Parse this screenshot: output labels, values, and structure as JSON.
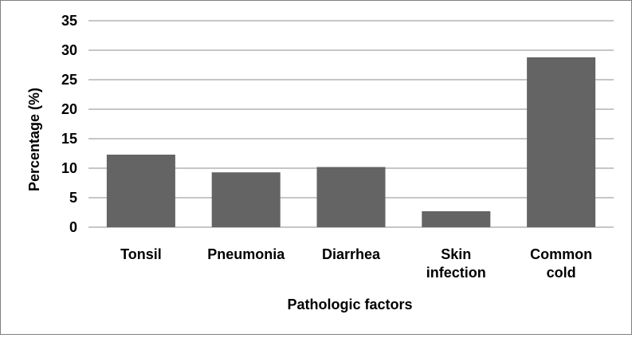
{
  "chart_data": {
    "type": "bar",
    "categories": [
      "Tonsil",
      "Pneumonia",
      "Diarrhea",
      "Skin infection",
      "Common cold"
    ],
    "category_label_lines": [
      [
        "Tonsil"
      ],
      [
        "Pneumonia"
      ],
      [
        "Diarrhea"
      ],
      [
        "Skin",
        "infection"
      ],
      [
        "Common",
        "cold"
      ]
    ],
    "values": [
      12.3,
      9.3,
      10.2,
      2.7,
      28.8
    ],
    "xlabel": "Pathologic factors",
    "ylabel": "Percentage (%)",
    "ylim": [
      0,
      35
    ],
    "yticks": [
      "0",
      "5",
      "10",
      "15",
      "20",
      "25",
      "30",
      "35"
    ],
    "grid": true,
    "bar_color": "#646464",
    "grid_color": "#8c8c8c"
  }
}
